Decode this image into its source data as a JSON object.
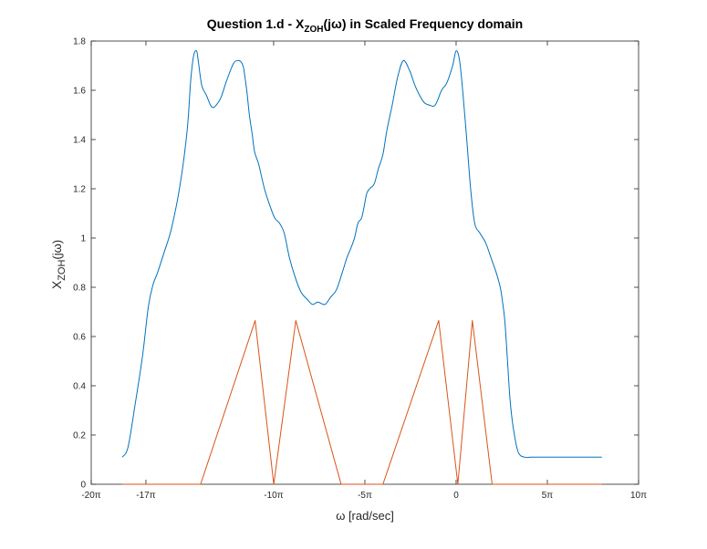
{
  "chart_data": {
    "type": "line",
    "title": {
      "prefix": "Question 1.d - X",
      "subscript": "ZOH",
      "suffix": "(jω) in Scaled Frequency domain"
    },
    "xlabel": "ω [rad/sec]",
    "ylabel": {
      "main": "X",
      "subscript": "ZOH",
      "suffix": "(jω)"
    },
    "xlim": [
      -62.83,
      31.42
    ],
    "ylim": [
      0,
      1.8
    ],
    "xticks": [
      {
        "value": -62.83,
        "label": "-20π"
      },
      {
        "value": -53.41,
        "label": "-17π"
      },
      {
        "value": -31.42,
        "label": "-10π"
      },
      {
        "value": -15.71,
        "label": "-5π"
      },
      {
        "value": 0,
        "label": "0"
      },
      {
        "value": 15.71,
        "label": "5π"
      },
      {
        "value": 31.42,
        "label": "10π"
      }
    ],
    "yticks": [
      {
        "value": 0,
        "label": "0"
      },
      {
        "value": 0.2,
        "label": "0.2"
      },
      {
        "value": 0.4,
        "label": "0.4"
      },
      {
        "value": 0.6,
        "label": "0.6"
      },
      {
        "value": 0.8,
        "label": "0.8"
      },
      {
        "value": 1.0,
        "label": "1"
      },
      {
        "value": 1.2,
        "label": "1.2"
      },
      {
        "value": 1.4,
        "label": "1.4"
      },
      {
        "value": 1.6,
        "label": "1.6"
      },
      {
        "value": 1.8,
        "label": "1.8"
      }
    ],
    "grid": false,
    "legend": "none",
    "series": [
      {
        "color": "#0072BD",
        "smooth": true,
        "x": [
          -57.5,
          -56.5,
          -55.3,
          -54.0,
          -53.0,
          -52.2,
          -51.4,
          -50.3,
          -49.0,
          -47.5,
          -46.3,
          -45.7,
          -45.2,
          -44.7,
          -44.4,
          -43.8,
          -43.0,
          -42.3,
          -41.8,
          -41.3,
          -40.5,
          -39.5,
          -38.3,
          -37.3,
          -36.7,
          -36.4,
          -36.0,
          -35.6,
          -35.1,
          -34.7,
          -34.0,
          -33.0,
          -31.9,
          -31.2,
          -30.4,
          -29.6,
          -28.7,
          -27.7,
          -26.7,
          -25.6,
          -24.7,
          -23.8,
          -22.6,
          -21.6,
          -20.6,
          -19.6,
          -18.8,
          -18.1,
          -17.5,
          -16.9,
          -16.3,
          -15.9,
          -15.4,
          -14.9,
          -14.1,
          -13.4,
          -12.6,
          -11.9,
          -11.0,
          -10.1,
          -9.1,
          -8.0,
          -7.1,
          -6.3,
          -5.5,
          -4.6,
          -3.6,
          -2.5,
          -1.6,
          -0.6,
          0.0,
          0.6,
          1.2,
          1.9,
          2.5,
          3.2,
          4.1,
          5.1,
          6.0,
          6.9,
          7.6,
          8.0,
          8.4,
          8.8,
          9.3,
          9.9,
          10.7,
          11.8,
          12.9,
          14.2,
          15.7,
          17.3,
          18.8,
          19.8,
          20.8,
          22.0,
          23.3,
          24.3,
          25.1
        ],
        "y": [
          0.11,
          0.15,
          0.32,
          0.52,
          0.72,
          0.81,
          0.86,
          0.94,
          1.04,
          1.22,
          1.44,
          1.64,
          1.74,
          1.76,
          1.72,
          1.62,
          1.58,
          1.54,
          1.53,
          1.54,
          1.57,
          1.64,
          1.71,
          1.72,
          1.7,
          1.66,
          1.59,
          1.5,
          1.42,
          1.35,
          1.3,
          1.2,
          1.12,
          1.08,
          1.06,
          1.02,
          0.92,
          0.84,
          0.78,
          0.75,
          0.73,
          0.74,
          0.73,
          0.76,
          0.79,
          0.86,
          0.92,
          0.96,
          1.0,
          1.06,
          1.08,
          1.12,
          1.18,
          1.2,
          1.22,
          1.28,
          1.34,
          1.44,
          1.54,
          1.65,
          1.72,
          1.68,
          1.62,
          1.58,
          1.55,
          1.54,
          1.54,
          1.6,
          1.63,
          1.7,
          1.76,
          1.72,
          1.58,
          1.38,
          1.2,
          1.06,
          1.02,
          0.98,
          0.92,
          0.86,
          0.8,
          0.74,
          0.66,
          0.52,
          0.34,
          0.22,
          0.13,
          0.11,
          0.11,
          0.11,
          0.11,
          0.11,
          0.11,
          0.11,
          0.11,
          0.11,
          0.11,
          0.11,
          0.11
        ]
      },
      {
        "color": "#D95319",
        "smooth": false,
        "x": [
          -57.5,
          -44.0,
          -34.6,
          -31.4,
          -27.6,
          -19.8,
          -12.6,
          -3.0,
          0.3,
          2.8,
          6.2,
          25.1
        ],
        "y": [
          0,
          0,
          0.665,
          0,
          0.665,
          0,
          0,
          0.665,
          0,
          0.665,
          0,
          0
        ]
      }
    ]
  }
}
